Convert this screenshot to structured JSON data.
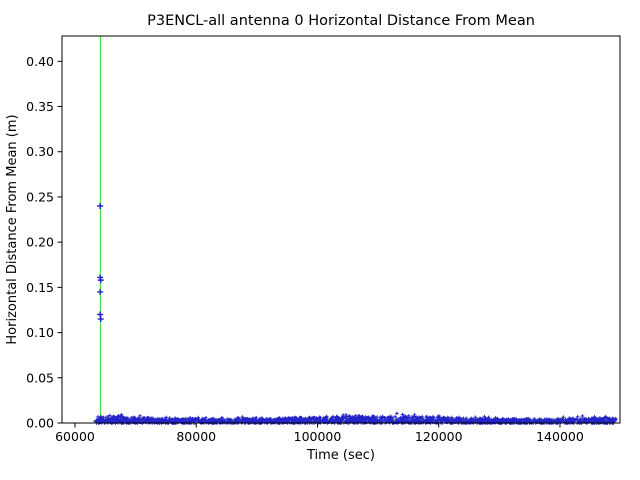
{
  "chart_data": {
    "type": "scatter",
    "title": "P3ENCL-all antenna 0 Horizontal Distance From Mean",
    "xlabel": "Time (sec)",
    "ylabel": "Horizontal Distance From Mean (m)",
    "xlim": [
      57855,
      149900
    ],
    "ylim": [
      0,
      0.428
    ],
    "grid": false,
    "legend": "none",
    "x_tick_values": [
      60000,
      80000,
      100000,
      120000,
      140000
    ],
    "x_tick_labels": [
      "60000",
      "80000",
      "100000",
      "120000",
      "140000"
    ],
    "y_tick_values": [
      0.0,
      0.05,
      0.1,
      0.15,
      0.2,
      0.25,
      0.3,
      0.35,
      0.4
    ],
    "y_tick_labels": [
      "0.00",
      "0.05",
      "0.10",
      "0.15",
      "0.20",
      "0.25",
      "0.30",
      "0.35",
      "0.40"
    ],
    "colors": {
      "scatter": "#2424c8",
      "event_line": "#4ce24c",
      "axes": "#000000",
      "background": "#ffffff"
    },
    "series": [
      {
        "name": "event-vline",
        "type": "vline",
        "x": 64200,
        "color": "#4ce24c"
      },
      {
        "name": "green-trace",
        "type": "line",
        "color": "#4ce24c",
        "x_start": 63000,
        "x_end": 149300,
        "y_base": 0.003,
        "y_jitter": 0.0028,
        "points": 520
      },
      {
        "name": "antenna0-horizontal-distance",
        "type": "scatter",
        "marker": "+",
        "color": "#2424c8",
        "x_start": 63300,
        "x_end": 149300,
        "band_y_min": 0.0,
        "band_y_max_typical": 0.008,
        "band_y_peak": 0.011,
        "points": 2100,
        "outliers": [
          [
            64150,
            0.24
          ],
          [
            64150,
            0.161
          ],
          [
            64250,
            0.158
          ],
          [
            64150,
            0.145
          ],
          [
            64150,
            0.12
          ],
          [
            64250,
            0.115
          ]
        ]
      }
    ]
  }
}
